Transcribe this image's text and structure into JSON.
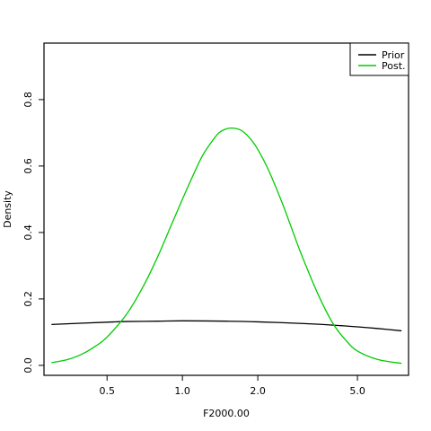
{
  "chart_data": {
    "type": "line",
    "title": "",
    "xlabel": "F2000.00",
    "ylabel": "Density",
    "x_scale": "log",
    "xlim": [
      0.28,
      8.0
    ],
    "ylim": [
      -0.03,
      0.97
    ],
    "x_ticks": [
      {
        "value": 0.5,
        "label": "0.5"
      },
      {
        "value": 1.0,
        "label": "1.0"
      },
      {
        "value": 2.0,
        "label": "2.0"
      },
      {
        "value": 5.0,
        "label": "5.0"
      }
    ],
    "y_ticks": [
      {
        "value": 0.0,
        "label": "0.0"
      },
      {
        "value": 0.2,
        "label": "0.2"
      },
      {
        "value": 0.4,
        "label": "0.4"
      },
      {
        "value": 0.6,
        "label": "0.6"
      },
      {
        "value": 0.8,
        "label": "0.8"
      }
    ],
    "legend_position": "top-right",
    "grid": false,
    "series": [
      {
        "name": "Prior",
        "color": "#000000",
        "x": [
          0.3,
          0.4,
          0.5,
          0.6,
          0.8,
          1.0,
          1.5,
          2.0,
          3.0,
          4.0,
          5.0,
          6.0,
          7.5
        ],
        "y": [
          0.123,
          0.127,
          0.13,
          0.132,
          0.133,
          0.134,
          0.133,
          0.131,
          0.126,
          0.121,
          0.116,
          0.111,
          0.104
        ]
      },
      {
        "name": "Post.",
        "color": "#00cc00",
        "x": [
          0.3,
          0.35,
          0.4,
          0.45,
          0.5,
          0.6,
          0.7,
          0.8,
          0.9,
          1.0,
          1.1,
          1.2,
          1.3,
          1.4,
          1.5,
          1.6,
          1.7,
          1.8,
          1.9,
          2.0,
          2.2,
          2.5,
          2.8,
          3.0,
          3.5,
          4.0,
          4.5,
          5.0,
          6.0,
          7.5
        ],
        "y": [
          0.008,
          0.018,
          0.035,
          0.058,
          0.085,
          0.155,
          0.24,
          0.33,
          0.42,
          0.5,
          0.57,
          0.63,
          0.67,
          0.7,
          0.712,
          0.714,
          0.709,
          0.695,
          0.675,
          0.65,
          0.59,
          0.49,
          0.39,
          0.33,
          0.21,
          0.125,
          0.075,
          0.043,
          0.018,
          0.006
        ]
      }
    ]
  }
}
